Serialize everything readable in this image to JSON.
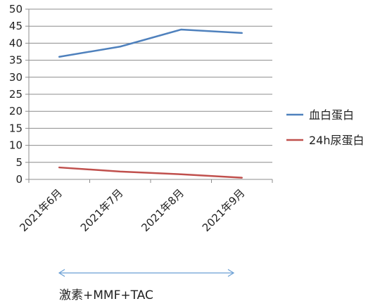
{
  "chart_data": {
    "type": "line",
    "title": "",
    "xlabel": "",
    "ylabel": "",
    "categories": [
      "2021年6月",
      "2021年7月",
      "2021年8月",
      "2021年9月"
    ],
    "ylim": [
      0,
      50
    ],
    "yticks": [
      0,
      5,
      10,
      15,
      20,
      25,
      30,
      35,
      40,
      45,
      50
    ],
    "grid": true,
    "legend_position": "right",
    "series": [
      {
        "name": "血白蛋白",
        "color": "#4F81BD",
        "values": [
          36,
          39,
          44,
          43
        ]
      },
      {
        "name": "24h尿蛋白",
        "color": "#C0504D",
        "values": [
          3.5,
          2.3,
          1.5,
          0.5
        ]
      }
    ]
  },
  "annotation": {
    "text": "激素+MMF+TAC",
    "arrow_color": "#6A9FD4",
    "span": [
      "2021年6月",
      "2021年9月"
    ]
  }
}
